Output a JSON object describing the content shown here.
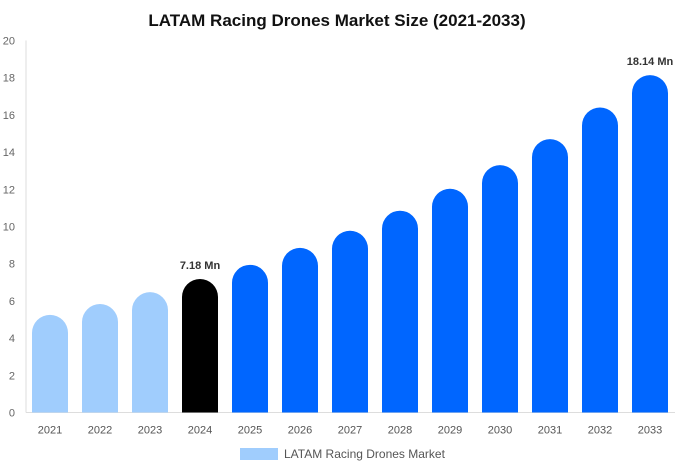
{
  "chart_data": {
    "type": "bar",
    "title": "LATAM Racing Drones Market Size (2021-2033)",
    "xlabel": "",
    "ylabel": "",
    "ylim": [
      0,
      20
    ],
    "yticks": [
      0,
      2,
      4,
      6,
      8,
      10,
      12,
      14,
      16,
      18,
      20
    ],
    "grid": false,
    "legend_position": "bottom",
    "categories": [
      "2021",
      "2022",
      "2023",
      "2024",
      "2025",
      "2026",
      "2027",
      "2028",
      "2029",
      "2030",
      "2031",
      "2032",
      "2033"
    ],
    "series": [
      {
        "name": "LATAM Racing Drones Market",
        "values": [
          5.25,
          5.83,
          6.47,
          7.18,
          7.94,
          8.85,
          9.77,
          10.85,
          12.03,
          13.3,
          14.7,
          16.4,
          18.14
        ]
      }
    ],
    "data_labels": {
      "2024": "7.18 Mn",
      "2033": "18.14 Mn"
    },
    "colors": {
      "historical": "#a0cdfd",
      "base_year": "#000000",
      "forecast": "#0066ff",
      "legend": "#a0cdfd"
    }
  }
}
